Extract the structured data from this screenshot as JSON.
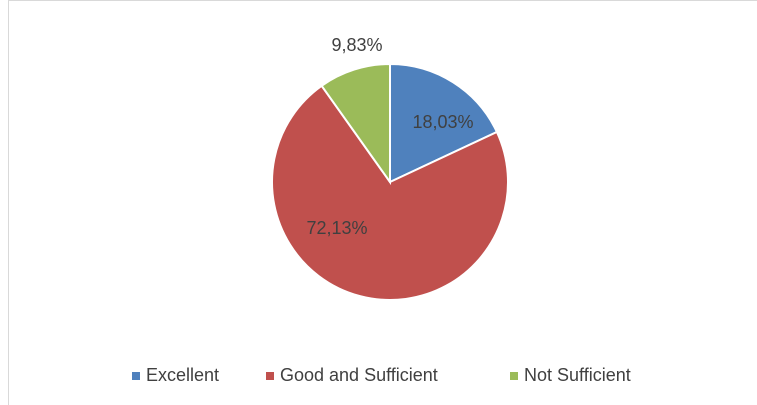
{
  "chart_data": {
    "type": "pie",
    "categories": [
      "Excellent",
      "Good and Sufficient",
      "Not Sufficient"
    ],
    "values": [
      18.03,
      72.13,
      9.83
    ],
    "value_labels": [
      "18,03%",
      "72,13%",
      "9,83%"
    ],
    "colors": [
      "#4f81bd",
      "#c0504d",
      "#9bbb59"
    ],
    "legend": "bottom"
  }
}
